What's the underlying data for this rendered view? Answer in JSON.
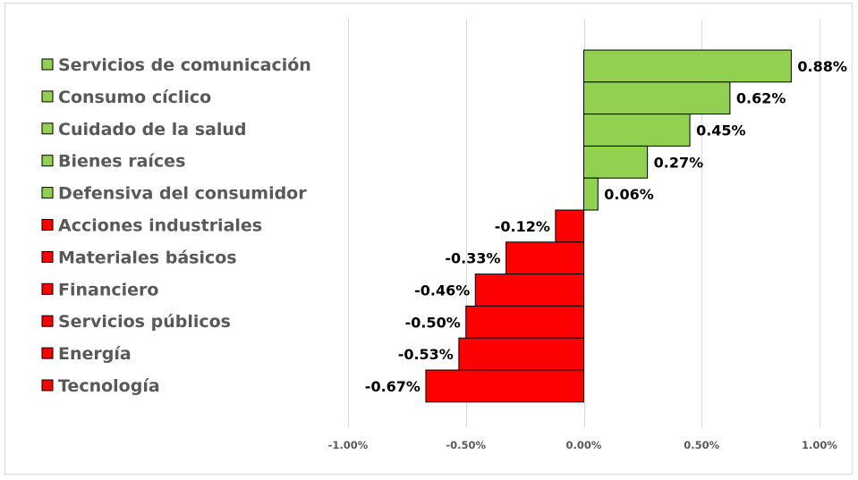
{
  "chart_data": {
    "type": "bar",
    "orientation": "horizontal",
    "categories": [
      "Servicios de comunicación",
      "Consumo cíclico",
      "Cuidado de la salud",
      "Bienes raíces",
      "Defensiva del consumidor",
      "Acciones industriales",
      "Materiales básicos",
      "Financiero",
      "Servicios públicos",
      "Energía",
      "Tecnología"
    ],
    "values": [
      0.88,
      0.62,
      0.45,
      0.27,
      0.06,
      -0.12,
      -0.33,
      -0.46,
      -0.5,
      -0.53,
      -0.67
    ],
    "value_labels": [
      "0.88%",
      "0.62%",
      "0.45%",
      "0.27%",
      "0.06%",
      "-0.12%",
      "-0.33%",
      "-0.46%",
      "-0.50%",
      "-0.53%",
      "-0.67%"
    ],
    "unit": "%",
    "xlim": [
      -1.0,
      1.0
    ],
    "x_ticks": [
      -1.0,
      -0.5,
      0.0,
      0.5,
      1.0
    ],
    "x_tick_labels": [
      "-1.00%",
      "-0.50%",
      "0.00%",
      "0.50%",
      "1.00%"
    ],
    "grid": "vertical",
    "legend_position": "left",
    "title": "",
    "xlabel": "",
    "ylabel": "",
    "colors": {
      "positive": "#92d050",
      "negative": "#ff0000",
      "border": "#000000",
      "grid": "#d9d9d9"
    }
  }
}
